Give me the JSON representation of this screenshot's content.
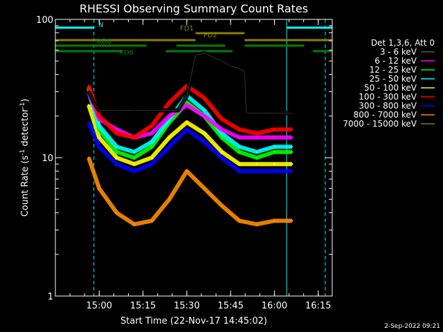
{
  "chart_data": {
    "type": "line",
    "title": "RHESSI Observing Summary Count Rates",
    "xlabel": "Start Time (22-Nov-17 14:45:02)",
    "ylabel": "Count Rate (s",
    "ylabel_sup": "-1",
    "ylabel_tail": " detector",
    "ylabel_sup2": "-1",
    "ylabel_close": ")",
    "y_scale": "log",
    "ylim": [
      1,
      100
    ],
    "xlim_minutes": [
      14.75,
      16.33
    ],
    "x_ticks": [
      {
        "label": "15:00",
        "value": 15.0
      },
      {
        "label": "15:15",
        "value": 15.25
      },
      {
        "label": "15:30",
        "value": 15.5
      },
      {
        "label": "15:45",
        "value": 15.75
      },
      {
        "label": "16:00",
        "value": 16.0
      },
      {
        "label": "16:15",
        "value": 16.25
      }
    ],
    "y_ticks": [
      {
        "label": "1",
        "value": 1
      },
      {
        "label": "10",
        "value": 10
      },
      {
        "label": "100",
        "value": 100
      }
    ],
    "legend_header": "Det 1,3,6, Att 0",
    "series": [
      {
        "name": "3 - 6 keV",
        "color": "#000000",
        "x": [
          14.94,
          14.97,
          15.0,
          15.1,
          15.2,
          15.3,
          15.45,
          15.5,
          15.55,
          15.6,
          15.7,
          15.75,
          15.8,
          15.83,
          15.84,
          15.9,
          16.0,
          16.1
        ],
        "y": [
          30,
          25,
          22,
          22,
          22,
          22,
          22,
          28,
          55,
          57,
          50,
          46,
          44,
          42,
          21,
          21,
          21,
          21
        ]
      },
      {
        "name": "6 - 12 keV",
        "color": "#ff00ff",
        "x": [
          14.94,
          15.0,
          15.1,
          15.2,
          15.3,
          15.4,
          15.5,
          15.6,
          15.7,
          15.8,
          15.9,
          16.0,
          16.1
        ],
        "y": [
          30,
          19,
          16,
          14,
          15,
          20,
          24,
          20,
          16,
          14,
          14,
          14,
          14
        ]
      },
      {
        "name": "12 - 25 keV",
        "color": "#00ff00",
        "x": [
          14.94,
          15.0,
          15.1,
          15.2,
          15.3,
          15.4,
          15.5,
          15.6,
          15.7,
          15.8,
          15.9,
          16.0,
          16.1
        ],
        "y": [
          32,
          16,
          11,
          10,
          12,
          18,
          25,
          20,
          14,
          11,
          10,
          11,
          11
        ]
      },
      {
        "name": "25 - 50 keV",
        "color": "#00ffff",
        "x": [
          14.94,
          15.0,
          15.1,
          15.2,
          15.3,
          15.4,
          15.5,
          15.6,
          15.7,
          15.8,
          15.9,
          16.0,
          16.1
        ],
        "y": [
          30,
          17,
          12,
          11,
          13,
          19,
          28,
          22,
          15,
          12,
          11,
          12,
          12
        ]
      },
      {
        "name": "50 - 100 keV",
        "color": "#ffff00",
        "x": [
          14.94,
          15.0,
          15.1,
          15.2,
          15.3,
          15.4,
          15.5,
          15.6,
          15.7,
          15.8,
          15.9,
          16.0,
          16.1
        ],
        "y": [
          24,
          14,
          10,
          9,
          10,
          14,
          18,
          15,
          11,
          9,
          9,
          9,
          9
        ]
      },
      {
        "name": "100 - 300 keV",
        "color": "#ff0000",
        "x": [
          14.94,
          15.0,
          15.1,
          15.2,
          15.3,
          15.4,
          15.5,
          15.6,
          15.7,
          15.8,
          15.9,
          16.0,
          16.1
        ],
        "y": [
          33,
          20,
          15,
          14,
          17,
          25,
          33,
          27,
          19,
          16,
          15,
          16,
          16
        ]
      },
      {
        "name": "300 - 800 keV",
        "color": "#0000ff",
        "x": [
          14.94,
          15.0,
          15.1,
          15.2,
          15.3,
          15.4,
          15.5,
          15.6,
          15.7,
          15.8,
          15.9,
          16.0,
          16.1
        ],
        "y": [
          18,
          12,
          9,
          8,
          9,
          12,
          16,
          13,
          10,
          8,
          8,
          8,
          8
        ]
      },
      {
        "name": "800 - 7000 keV",
        "color": "#ff8c00",
        "x": [
          14.94,
          15.0,
          15.1,
          15.2,
          15.3,
          15.4,
          15.5,
          15.6,
          15.7,
          15.8,
          15.9,
          16.0,
          16.1
        ],
        "y": [
          10,
          6,
          4,
          3.3,
          3.5,
          5,
          8,
          6,
          4.5,
          3.5,
          3.3,
          3.5,
          3.5
        ]
      },
      {
        "name": "7000 - 15000 keV",
        "color": "#8b8000",
        "x": [],
        "y": []
      }
    ],
    "status_bars": [
      {
        "label": "N",
        "color": "#00ffff",
        "segments": [
          [
            14.75,
            14.97
          ],
          [
            16.07,
            16.33
          ]
        ]
      },
      {
        "label": "FD1",
        "color": "#8b8000",
        "segments": [
          [
            15.55,
            15.83
          ]
        ]
      },
      {
        "label": "FD2",
        "color": "#8b8000",
        "segments": [
          [
            14.75,
            15.55
          ],
          [
            15.83,
            16.33
          ]
        ]
      },
      {
        "label": "RD0",
        "color": "#008000",
        "segments": [
          [
            14.75,
            15.27
          ],
          [
            15.44,
            15.72
          ],
          [
            15.83,
            16.17
          ]
        ]
      },
      {
        "label": "RD6",
        "color": "#008000",
        "segments": [
          [
            14.75,
            15.13
          ],
          [
            15.38,
            15.76
          ],
          [
            16.22,
            16.33
          ]
        ]
      }
    ],
    "vertical_markers": [
      {
        "x": 14.75,
        "color": "#00ffff",
        "style": "solid"
      },
      {
        "x": 14.97,
        "color": "#00ffff",
        "style": "dashed"
      },
      {
        "x": 16.07,
        "color": "#00ffff",
        "style": "solid"
      },
      {
        "x": 16.29,
        "color": "#00ffff",
        "style": "dashed"
      }
    ],
    "grid": false,
    "legend_placement": "right"
  },
  "footer": {
    "timestamp": "2-Sep-2022 09:21"
  },
  "colors": {
    "background": "#000000",
    "axes": "#ffffff"
  }
}
